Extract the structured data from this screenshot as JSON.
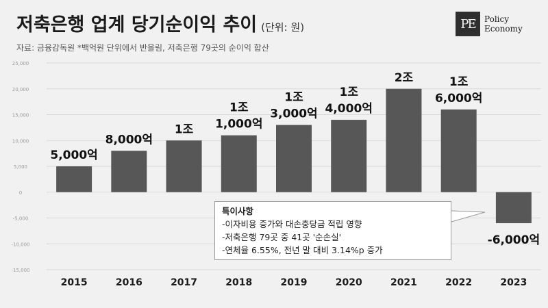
{
  "header": {
    "title": "저축은행 업계 당기순이익 추이",
    "unit": "(단위: 원)",
    "source": "자료: 금융감독원 *백억원 단위에서 반올림, 저축은행 79곳의 순이익 합산"
  },
  "logo": {
    "mark": "PE",
    "line1": "Policy",
    "line2": "Economy"
  },
  "note": {
    "heading": "특이사항",
    "lines": [
      "-이자비용 증가와 대손충당금 적립 영향",
      "-저축은행 79곳 중 41곳 '순손실'",
      "-연체율 6.55%, 전년 말 대비 3.14%p 증가"
    ]
  },
  "chart_data": {
    "type": "bar",
    "categories": [
      "2015",
      "2016",
      "2017",
      "2018",
      "2019",
      "2020",
      "2021",
      "2022",
      "2023"
    ],
    "values": [
      5000,
      8000,
      10000,
      11000,
      13000,
      14000,
      20000,
      16000,
      -6000
    ],
    "data_labels": [
      [
        "5,000억"
      ],
      [
        "8,000억"
      ],
      [
        "1조"
      ],
      [
        "1조",
        "1,000억"
      ],
      [
        "1조",
        "3,000억"
      ],
      [
        "1조",
        "4,000억"
      ],
      [
        "2조"
      ],
      [
        "1조",
        "6,000억"
      ],
      [
        "-6,000억"
      ]
    ],
    "y_ticks": [
      25000,
      20000,
      15000,
      10000,
      5000,
      0,
      -5000,
      -10000,
      -15000
    ],
    "y_tick_labels": [
      "25,000",
      "20,000",
      "15,000",
      "10,000",
      "5,000",
      "0",
      "-5,000",
      "-10,000",
      "-15,000"
    ],
    "ylim": [
      -15000,
      25000
    ],
    "grid": true,
    "bar_color": "#575757",
    "grid_color": "#d9d9d9"
  }
}
